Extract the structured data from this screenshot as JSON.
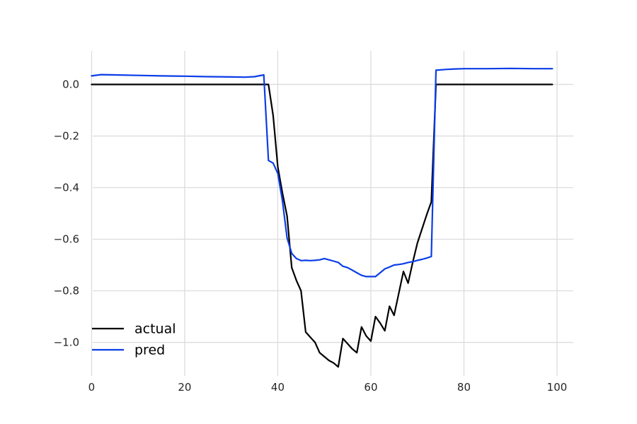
{
  "chart_data": {
    "type": "line",
    "title": "",
    "xlabel": "",
    "ylabel": "",
    "xlim": [
      -2.5,
      103.5
    ],
    "ylim": [
      -1.13,
      0.13
    ],
    "x_ticks": [
      0,
      20,
      40,
      60,
      80,
      100
    ],
    "x_tick_labels": [
      "0",
      "20",
      "40",
      "60",
      "80",
      "100"
    ],
    "y_ticks": [
      0.0,
      -0.2,
      -0.4,
      -0.6,
      -0.8,
      -1.0
    ],
    "y_tick_labels": [
      "0.0",
      "−0.2",
      "−0.4",
      "−0.6",
      "−0.8",
      "−1.0"
    ],
    "grid": true,
    "legend_position": "lower-left",
    "series": [
      {
        "name": "actual",
        "color": "#000000",
        "points": [
          [
            0,
            0.0
          ],
          [
            10,
            0.0
          ],
          [
            20,
            0.0
          ],
          [
            30,
            0.0
          ],
          [
            37,
            0.0
          ],
          [
            38,
            0.0
          ],
          [
            39,
            -0.12
          ],
          [
            40,
            -0.32
          ],
          [
            41,
            -0.42
          ],
          [
            42,
            -0.51
          ],
          [
            43,
            -0.71
          ],
          [
            44,
            -0.76
          ],
          [
            45,
            -0.8
          ],
          [
            46,
            -0.96
          ],
          [
            47,
            -0.98
          ],
          [
            48,
            -1.0
          ],
          [
            49,
            -1.04
          ],
          [
            50,
            -1.055
          ],
          [
            51,
            -1.07
          ],
          [
            52,
            -1.08
          ],
          [
            53,
            -1.095
          ],
          [
            54,
            -0.985
          ],
          [
            55,
            -1.005
          ],
          [
            56,
            -1.025
          ],
          [
            57,
            -1.04
          ],
          [
            58,
            -0.94
          ],
          [
            59,
            -0.975
          ],
          [
            60,
            -0.995
          ],
          [
            61,
            -0.9
          ],
          [
            62,
            -0.925
          ],
          [
            63,
            -0.955
          ],
          [
            64,
            -0.86
          ],
          [
            65,
            -0.895
          ],
          [
            66,
            -0.81
          ],
          [
            67,
            -0.725
          ],
          [
            68,
            -0.77
          ],
          [
            69,
            -0.69
          ],
          [
            70,
            -0.615
          ],
          [
            71,
            -0.56
          ],
          [
            72,
            -0.505
          ],
          [
            73,
            -0.455
          ],
          [
            74,
            0.0
          ],
          [
            80,
            0.0
          ],
          [
            90,
            0.0
          ],
          [
            99,
            0.0
          ]
        ]
      },
      {
        "name": "pred",
        "color": "#0a3de8",
        "points": [
          [
            0,
            0.033
          ],
          [
            2,
            0.038
          ],
          [
            5,
            0.037
          ],
          [
            10,
            0.035
          ],
          [
            15,
            0.033
          ],
          [
            20,
            0.032
          ],
          [
            25,
            0.03
          ],
          [
            30,
            0.029
          ],
          [
            33,
            0.028
          ],
          [
            35,
            0.03
          ],
          [
            37,
            0.037
          ],
          [
            38,
            -0.295
          ],
          [
            39,
            -0.305
          ],
          [
            40,
            -0.345
          ],
          [
            41,
            -0.45
          ],
          [
            42,
            -0.595
          ],
          [
            43,
            -0.655
          ],
          [
            44,
            -0.675
          ],
          [
            45,
            -0.683
          ],
          [
            46,
            -0.682
          ],
          [
            47,
            -0.683
          ],
          [
            48,
            -0.682
          ],
          [
            49,
            -0.68
          ],
          [
            50,
            -0.675
          ],
          [
            51,
            -0.68
          ],
          [
            52,
            -0.685
          ],
          [
            53,
            -0.69
          ],
          [
            54,
            -0.705
          ],
          [
            55,
            -0.71
          ],
          [
            56,
            -0.72
          ],
          [
            57,
            -0.73
          ],
          [
            58,
            -0.74
          ],
          [
            59,
            -0.745
          ],
          [
            60,
            -0.745
          ],
          [
            61,
            -0.745
          ],
          [
            62,
            -0.73
          ],
          [
            63,
            -0.715
          ],
          [
            64,
            -0.708
          ],
          [
            65,
            -0.7
          ],
          [
            66,
            -0.698
          ],
          [
            67,
            -0.695
          ],
          [
            68,
            -0.69
          ],
          [
            69,
            -0.687
          ],
          [
            70,
            -0.682
          ],
          [
            71,
            -0.678
          ],
          [
            72,
            -0.673
          ],
          [
            73,
            -0.667
          ],
          [
            74,
            0.055
          ],
          [
            76,
            0.058
          ],
          [
            78,
            0.06
          ],
          [
            80,
            0.061
          ],
          [
            85,
            0.061
          ],
          [
            90,
            0.062
          ],
          [
            95,
            0.061
          ],
          [
            99,
            0.061
          ]
        ]
      }
    ]
  }
}
